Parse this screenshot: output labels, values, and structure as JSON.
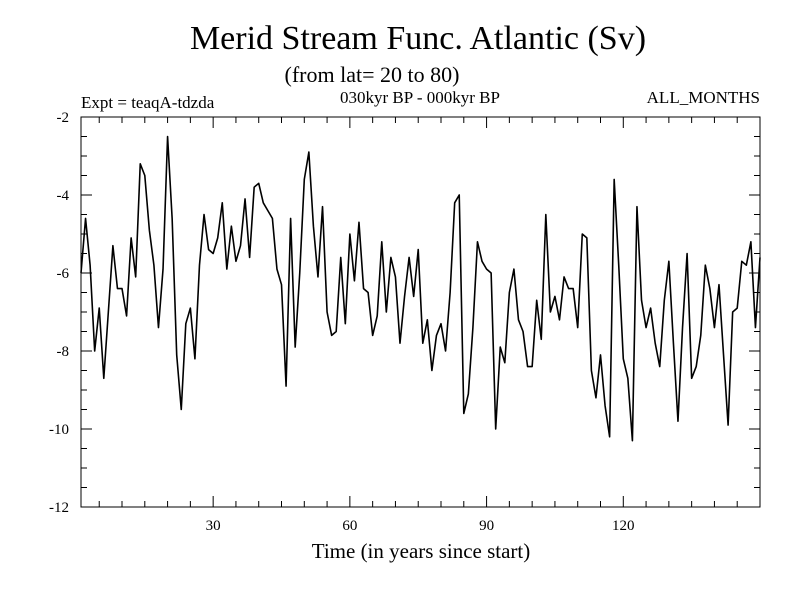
{
  "chart_data": {
    "type": "line",
    "title": "Merid Stream Func. Atlantic (Sv)",
    "subtitle": "(from lat= 20 to 80)",
    "left_label": "Expt = teaqA-tdzda",
    "center_label": "030kyr BP - 000kyr BP",
    "right_label": "ALL_MONTHS",
    "xlabel": "Time (in years since start)",
    "ylabel": "",
    "xlim": [
      1,
      150
    ],
    "ylim": [
      -12,
      -2
    ],
    "x_ticks": [
      30,
      60,
      90,
      120
    ],
    "y_ticks": [
      -2,
      -4,
      -6,
      -8,
      -10,
      -12
    ],
    "grid": false,
    "series": [
      {
        "values": [
          -6.0,
          -4.6,
          -5.8,
          -8.0,
          -6.9,
          -8.7,
          -7.0,
          -5.3,
          -6.4,
          -6.4,
          -7.1,
          -5.1,
          -6.1,
          -3.2,
          -3.5,
          -4.9,
          -5.8,
          -7.4,
          -5.9,
          -2.5,
          -4.6,
          -8.1,
          -9.5,
          -7.3,
          -6.9,
          -8.2,
          -5.8,
          -4.5,
          -5.4,
          -5.5,
          -5.1,
          -4.2,
          -5.9,
          -4.8,
          -5.7,
          -5.3,
          -4.1,
          -5.6,
          -3.8,
          -3.7,
          -4.2,
          -4.4,
          -4.6,
          -5.9,
          -6.3,
          -8.9,
          -4.6,
          -7.9,
          -6.0,
          -3.6,
          -2.9,
          -4.8,
          -6.1,
          -4.3,
          -7.0,
          -7.6,
          -7.5,
          -5.6,
          -7.3,
          -5.0,
          -6.2,
          -4.7,
          -6.4,
          -6.5,
          -7.6,
          -7.1,
          -5.2,
          -7.0,
          -5.6,
          -6.1,
          -7.8,
          -6.6,
          -5.6,
          -6.6,
          -5.4,
          -7.8,
          -7.2,
          -8.5,
          -7.6,
          -7.3,
          -8.0,
          -6.5,
          -4.2,
          -4.0,
          -9.6,
          -9.1,
          -7.4,
          -5.2,
          -5.7,
          -5.9,
          -6.0,
          -10.0,
          -7.9,
          -8.3,
          -6.5,
          -5.9,
          -7.2,
          -7.5,
          -8.4,
          -8.4,
          -6.7,
          -7.7,
          -4.5,
          -7.0,
          -6.6,
          -7.2,
          -6.1,
          -6.4,
          -6.4,
          -7.4,
          -5.0,
          -5.1,
          -8.5,
          -9.2,
          -8.1,
          -9.4,
          -10.2,
          -3.6,
          -5.8,
          -8.2,
          -8.7,
          -10.3,
          -4.3,
          -6.7,
          -7.4,
          -6.9,
          -7.8,
          -8.4,
          -6.7,
          -5.7,
          -7.8,
          -9.8,
          -7.4,
          -5.5,
          -8.7,
          -8.4,
          -7.6,
          -5.8,
          -6.4,
          -7.4,
          -6.3,
          -8.1,
          -9.9,
          -7.0,
          -6.9,
          -5.7,
          -5.8,
          -5.2,
          -7.4,
          -5.6
        ]
      }
    ]
  }
}
